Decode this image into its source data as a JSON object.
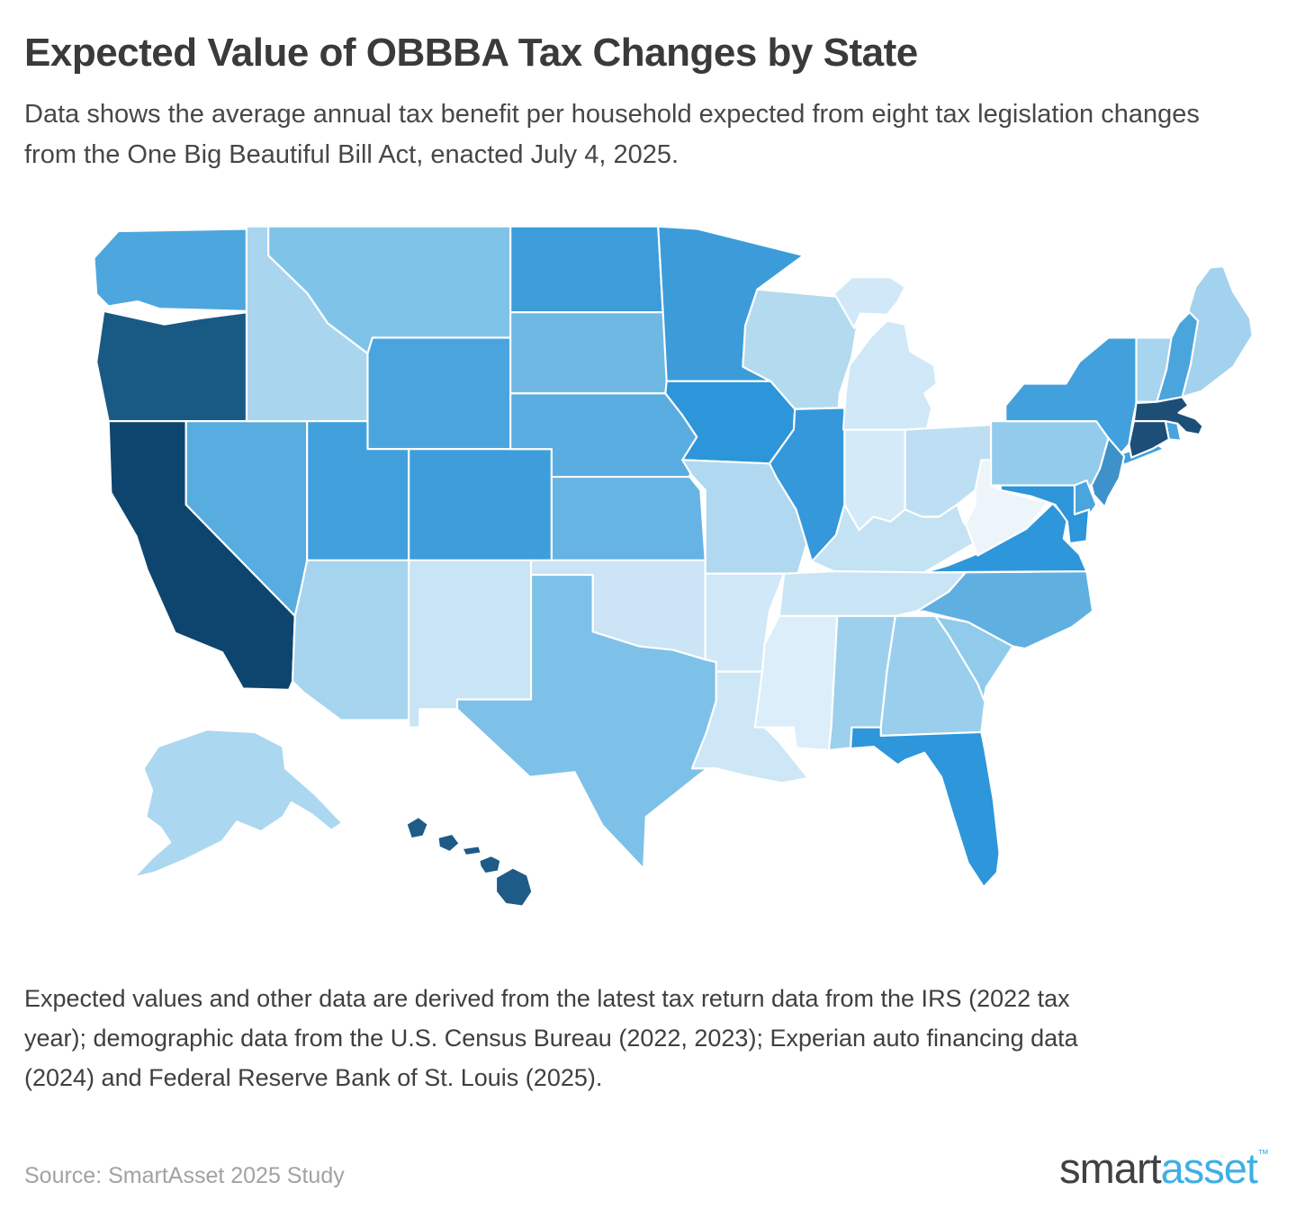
{
  "header": {
    "title": "Expected Value of OBBBA Tax Changes by State",
    "subtitle": "Data shows the average annual tax benefit per household expected from eight tax legislation changes from the One Big Beautiful Bill Act, enacted July 4, 2025."
  },
  "chart_data": {
    "type": "choropleth-map",
    "title": "Expected Value of OBBBA Tax Changes by State",
    "region": "United States",
    "encoding": "Blue sequential scale; darker blue = higher expected annual tax benefit per household",
    "stroke_color": "#ffffff",
    "states": [
      {
        "abbr": "WA",
        "name": "Washington",
        "color": "#4da7de"
      },
      {
        "abbr": "OR",
        "name": "Oregon",
        "color": "#195a84"
      },
      {
        "abbr": "CA",
        "name": "California",
        "color": "#0e456e"
      },
      {
        "abbr": "NV",
        "name": "Nevada",
        "color": "#57ace0"
      },
      {
        "abbr": "ID",
        "name": "Idaho",
        "color": "#a9d5ef"
      },
      {
        "abbr": "MT",
        "name": "Montana",
        "color": "#80c3e9"
      },
      {
        "abbr": "WY",
        "name": "Wyoming",
        "color": "#4aa5de"
      },
      {
        "abbr": "UT",
        "name": "Utah",
        "color": "#41a0dc"
      },
      {
        "abbr": "CO",
        "name": "Colorado",
        "color": "#3e9edc"
      },
      {
        "abbr": "AZ",
        "name": "Arizona",
        "color": "#a6d4ef"
      },
      {
        "abbr": "NM",
        "name": "New Mexico",
        "color": "#c8e4f5"
      },
      {
        "abbr": "ND",
        "name": "North Dakota",
        "color": "#3d9ddb"
      },
      {
        "abbr": "SD",
        "name": "South Dakota",
        "color": "#6fb8e4"
      },
      {
        "abbr": "NE",
        "name": "Nebraska",
        "color": "#5aade0"
      },
      {
        "abbr": "KS",
        "name": "Kansas",
        "color": "#66b4e3"
      },
      {
        "abbr": "OK",
        "name": "Oklahoma",
        "color": "#cbe5f6"
      },
      {
        "abbr": "TX",
        "name": "Texas",
        "color": "#7ec1e8"
      },
      {
        "abbr": "MN",
        "name": "Minnesota",
        "color": "#3c9cda"
      },
      {
        "abbr": "IA",
        "name": "Iowa",
        "color": "#2d95d9"
      },
      {
        "abbr": "MO",
        "name": "Missouri",
        "color": "#b0d8f0"
      },
      {
        "abbr": "AR",
        "name": "Arkansas",
        "color": "#d0e8f7"
      },
      {
        "abbr": "LA",
        "name": "Louisiana",
        "color": "#cde7f6"
      },
      {
        "abbr": "WI",
        "name": "Wisconsin",
        "color": "#b4daf0"
      },
      {
        "abbr": "IL",
        "name": "Illinois",
        "color": "#3498db"
      },
      {
        "abbr": "MI",
        "name": "Michigan",
        "color": "#d0e8f7"
      },
      {
        "abbr": "IN",
        "name": "Indiana",
        "color": "#d4eaf8"
      },
      {
        "abbr": "OH",
        "name": "Ohio",
        "color": "#bedff3"
      },
      {
        "abbr": "KY",
        "name": "Kentucky",
        "color": "#c3e2f4"
      },
      {
        "abbr": "TN",
        "name": "Tennessee",
        "color": "#c9e5f5"
      },
      {
        "abbr": "MS",
        "name": "Mississippi",
        "color": "#dceef9"
      },
      {
        "abbr": "AL",
        "name": "Alabama",
        "color": "#9dd0ed"
      },
      {
        "abbr": "GA",
        "name": "Georgia",
        "color": "#99cfed"
      },
      {
        "abbr": "FL",
        "name": "Florida",
        "color": "#2e96da"
      },
      {
        "abbr": "SC",
        "name": "South Carolina",
        "color": "#90cbec"
      },
      {
        "abbr": "NC",
        "name": "North Carolina",
        "color": "#5fb0e0"
      },
      {
        "abbr": "VA",
        "name": "Virginia",
        "color": "#2e96da"
      },
      {
        "abbr": "WV",
        "name": "West Virginia",
        "color": "#edf5fb"
      },
      {
        "abbr": "PA",
        "name": "Pennsylvania",
        "color": "#92cbec"
      },
      {
        "abbr": "NY",
        "name": "New York",
        "color": "#42a0dc"
      },
      {
        "abbr": "VT",
        "name": "Vermont",
        "color": "#a7d4ee"
      },
      {
        "abbr": "NH",
        "name": "New Hampshire",
        "color": "#4aa5dd"
      },
      {
        "abbr": "ME",
        "name": "Maine",
        "color": "#a3d2ee"
      },
      {
        "abbr": "MA",
        "name": "Massachusetts",
        "color": "#1d4e75"
      },
      {
        "abbr": "RI",
        "name": "Rhode Island",
        "color": "#4aa3dc"
      },
      {
        "abbr": "CT",
        "name": "Connecticut",
        "color": "#1c4e77"
      },
      {
        "abbr": "NJ",
        "name": "New Jersey",
        "color": "#3e92c9"
      },
      {
        "abbr": "DE",
        "name": "Delaware",
        "color": "#4aa4dd"
      },
      {
        "abbr": "MD",
        "name": "Maryland",
        "color": "#2d95d9"
      },
      {
        "abbr": "AK",
        "name": "Alaska",
        "color": "#abd7f0"
      },
      {
        "abbr": "HI",
        "name": "Hawaii",
        "color": "#1e5b86"
      }
    ]
  },
  "footer": {
    "note": "Expected values and other data are derived from the latest tax return data from the IRS (2022 tax year); demographic data from the U.S. Census Bureau (2022, 2023); Experian auto financing data (2024) and Federal Reserve Bank of St. Louis (2025).",
    "source": "Source: SmartAsset 2025 Study"
  },
  "logo": {
    "smart": "smart",
    "asset": "asset",
    "tm": "™"
  }
}
